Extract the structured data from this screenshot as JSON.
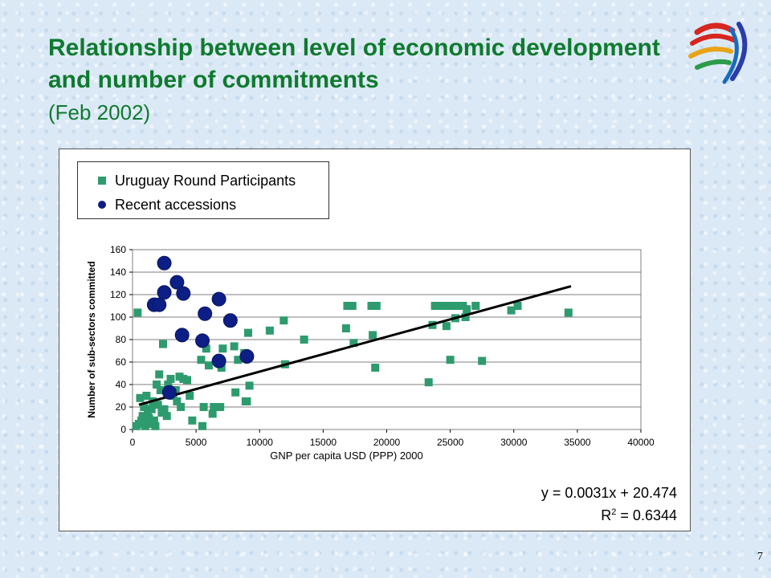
{
  "slide": {
    "title": "Relationship between level of economic development and number of commitments",
    "subtitle": "(Feb 2002)",
    "page_number": "7"
  },
  "colors": {
    "title": "#0f7a2e",
    "ur_marker": "#2e9b6e",
    "accession_marker": "#0d1f86",
    "trendline": "#000000"
  },
  "logo": {
    "icon": "wto-logo-icon"
  },
  "chart_data": {
    "type": "scatter",
    "title": "",
    "xlabel": "GNP per capita USD (PPP) 2000",
    "ylabel": "Number of sub-sectors committed",
    "xlim": [
      0,
      40000
    ],
    "ylim": [
      0,
      160
    ],
    "x_ticks": [
      "0",
      "5000",
      "10000",
      "15000",
      "20000",
      "25000",
      "30000",
      "35000",
      "40000"
    ],
    "y_ticks": [
      "0",
      "20",
      "40",
      "60",
      "80",
      "100",
      "120",
      "140",
      "160"
    ],
    "grid": "horizontal",
    "legend_position": "top-left",
    "series": [
      {
        "name": "Uruguay Round Participants",
        "marker": "square",
        "points": [
          [
            400,
            104
          ],
          [
            300,
            3
          ],
          [
            500,
            5
          ],
          [
            600,
            28
          ],
          [
            700,
            8
          ],
          [
            800,
            12
          ],
          [
            900,
            20
          ],
          [
            1000,
            3
          ],
          [
            1100,
            30
          ],
          [
            1200,
            15
          ],
          [
            1300,
            10
          ],
          [
            1400,
            5
          ],
          [
            1500,
            18
          ],
          [
            1600,
            25
          ],
          [
            1700,
            8
          ],
          [
            1800,
            3
          ],
          [
            1900,
            40
          ],
          [
            2000,
            22
          ],
          [
            2100,
            49
          ],
          [
            2200,
            35
          ],
          [
            2300,
            15
          ],
          [
            2400,
            76
          ],
          [
            2500,
            18
          ],
          [
            2700,
            12
          ],
          [
            2800,
            40
          ],
          [
            3000,
            45
          ],
          [
            3200,
            30
          ],
          [
            3400,
            35
          ],
          [
            3500,
            25
          ],
          [
            3700,
            47
          ],
          [
            3800,
            20
          ],
          [
            4000,
            45
          ],
          [
            4300,
            44
          ],
          [
            4500,
            30
          ],
          [
            4700,
            8
          ],
          [
            5400,
            62
          ],
          [
            5500,
            3
          ],
          [
            5600,
            20
          ],
          [
            5800,
            72
          ],
          [
            6000,
            57
          ],
          [
            6300,
            14
          ],
          [
            6400,
            20
          ],
          [
            6800,
            62
          ],
          [
            6900,
            20
          ],
          [
            7000,
            55
          ],
          [
            7100,
            72
          ],
          [
            8000,
            74
          ],
          [
            8100,
            33
          ],
          [
            8300,
            62
          ],
          [
            8800,
            68
          ],
          [
            8900,
            25
          ],
          [
            9000,
            25
          ],
          [
            9100,
            86
          ],
          [
            9200,
            39
          ],
          [
            10800,
            88
          ],
          [
            11900,
            97
          ],
          [
            12000,
            58
          ],
          [
            13500,
            80
          ],
          [
            16800,
            90
          ],
          [
            16900,
            110
          ],
          [
            17300,
            110
          ],
          [
            17400,
            77
          ],
          [
            18800,
            110
          ],
          [
            18900,
            84
          ],
          [
            19100,
            55
          ],
          [
            19200,
            110
          ],
          [
            23300,
            42
          ],
          [
            23600,
            93
          ],
          [
            23800,
            110
          ],
          [
            24200,
            110
          ],
          [
            24600,
            110
          ],
          [
            24700,
            92
          ],
          [
            25000,
            62
          ],
          [
            25200,
            110
          ],
          [
            25400,
            99
          ],
          [
            25700,
            110
          ],
          [
            26000,
            110
          ],
          [
            26200,
            100
          ],
          [
            26300,
            107
          ],
          [
            27000,
            110
          ],
          [
            27500,
            61
          ],
          [
            29800,
            106
          ],
          [
            30300,
            110
          ],
          [
            34300,
            104
          ]
        ]
      },
      {
        "name": "Recent accessions",
        "marker": "circle",
        "points": [
          [
            1700,
            111
          ],
          [
            2100,
            111
          ],
          [
            2500,
            148
          ],
          [
            2500,
            122
          ],
          [
            2900,
            33
          ],
          [
            3500,
            131
          ],
          [
            3900,
            84
          ],
          [
            4000,
            121
          ],
          [
            5500,
            79
          ],
          [
            5700,
            103
          ],
          [
            6800,
            61
          ],
          [
            6800,
            116
          ],
          [
            7700,
            97
          ],
          [
            9000,
            65
          ]
        ]
      }
    ],
    "trendline": {
      "type": "linear",
      "slope": 0.0031,
      "intercept": 20.474,
      "x_start": 500,
      "x_end": 34500,
      "equation_label": "y = 0.0031x  + 20.474",
      "r2_label_prefix": "R",
      "r2_label_sup": "2",
      "r2_label_value": " = 0.6344"
    }
  }
}
